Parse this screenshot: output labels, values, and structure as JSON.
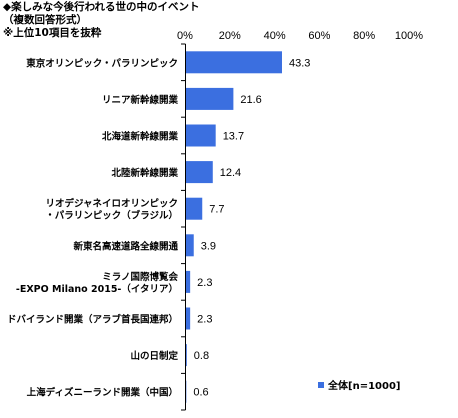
{
  "header": {
    "title": "◆楽しみな今後行われる世の中のイベント",
    "subtitle": "（複数回答形式）",
    "note": "※上位10項目を抜粋"
  },
  "chart_data": {
    "type": "bar",
    "orientation": "horizontal",
    "categories": [
      [
        "東京オリンピック・パラリンピック"
      ],
      [
        "リニア新幹線開業"
      ],
      [
        "北海道新幹線開業"
      ],
      [
        "北陸新幹線開業"
      ],
      [
        "リオデジャネイロオリンピック",
        "・パラリンピック（ブラジル）"
      ],
      [
        "新東名高速道路全線開通"
      ],
      [
        "ミラノ国際博覧会",
        "-EXPO Milano 2015-（イタリア）"
      ],
      [
        "ドバイランド開業（アラブ首長国連邦）"
      ],
      [
        "山の日制定"
      ],
      [
        "上海ディズニーランド開業（中国）"
      ]
    ],
    "series": [
      {
        "name": "全体[n=1000]",
        "values": [
          43.3,
          21.6,
          13.7,
          12.4,
          7.7,
          3.9,
          2.3,
          2.3,
          0.8,
          0.6
        ],
        "color": "#3b6fe0"
      }
    ],
    "xlim": [
      0,
      100
    ],
    "xticks": [
      "0%",
      "20%",
      "40%",
      "60%",
      "80%",
      "100%"
    ],
    "grid": false,
    "legend_position": "bottom-right"
  }
}
